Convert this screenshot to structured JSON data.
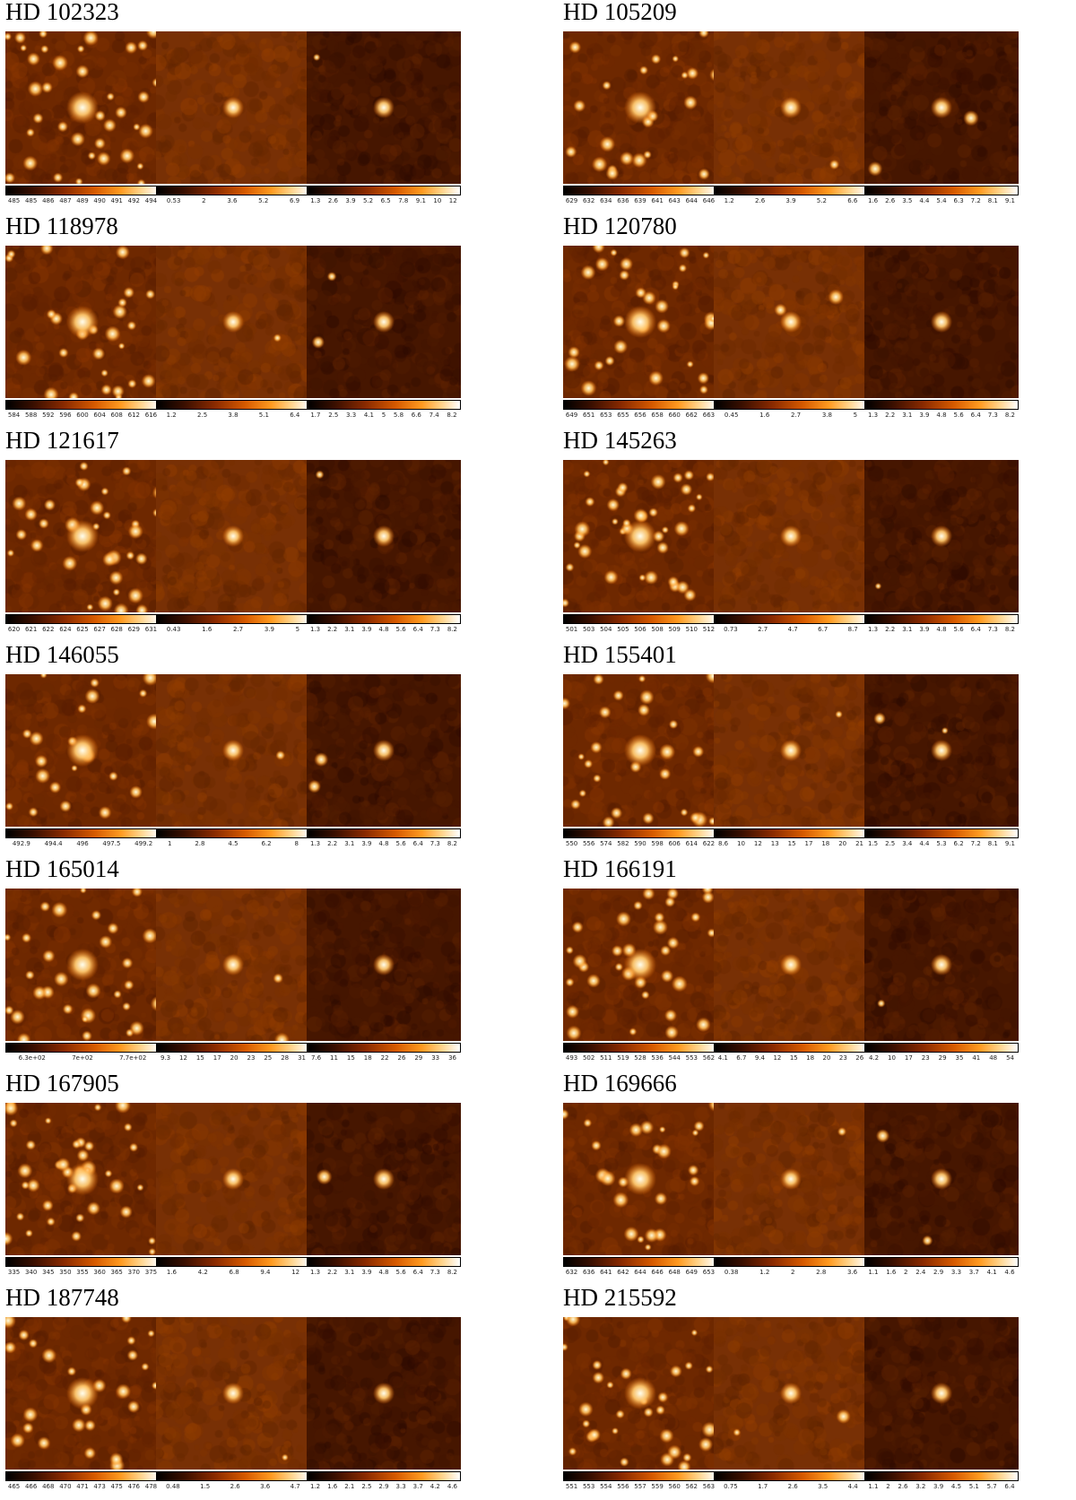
{
  "objects": [
    {
      "name": "HD 102323",
      "panels": [
        [
          "485",
          "485",
          "486",
          "487",
          "489",
          "490",
          "491",
          "492",
          "494"
        ],
        [
          "0.53",
          "2",
          "3.6",
          "5.2",
          "6.9"
        ],
        [
          "1.3",
          "2.6",
          "3.9",
          "5.2",
          "6.5",
          "7.8",
          "9.1",
          "10",
          "12"
        ]
      ]
    },
    {
      "name": "HD 105209",
      "panels": [
        [
          "629",
          "632",
          "634",
          "636",
          "639",
          "641",
          "643",
          "644",
          "646"
        ],
        [
          "1.2",
          "2.6",
          "3.9",
          "5.2",
          "6.6"
        ],
        [
          "1.6",
          "2.6",
          "3.5",
          "4.4",
          "5.4",
          "6.3",
          "7.2",
          "8.1",
          "9.1"
        ]
      ]
    },
    {
      "name": "HD 118978",
      "panels": [
        [
          "584",
          "588",
          "592",
          "596",
          "600",
          "604",
          "608",
          "612",
          "616"
        ],
        [
          "1.2",
          "2.5",
          "3.8",
          "5.1",
          "6.4"
        ],
        [
          "1.7",
          "2.5",
          "3.3",
          "4.1",
          "5",
          "5.8",
          "6.6",
          "7.4",
          "8.2"
        ]
      ]
    },
    {
      "name": "HD 120780",
      "panels": [
        [
          "649",
          "651",
          "653",
          "655",
          "656",
          "658",
          "660",
          "662",
          "663"
        ],
        [
          "0.45",
          "1.6",
          "2.7",
          "3.8",
          "5"
        ],
        [
          "1.3",
          "2.2",
          "3.1",
          "3.9",
          "4.8",
          "5.6",
          "6.4",
          "7.3",
          "8.2"
        ]
      ]
    },
    {
      "name": "HD 121617",
      "panels": [
        [
          "620",
          "621",
          "622",
          "624",
          "625",
          "627",
          "628",
          "629",
          "631"
        ],
        [
          "0.43",
          "1.6",
          "2.7",
          "3.9",
          "5"
        ],
        [
          "1.3",
          "2.2",
          "3.1",
          "3.9",
          "4.8",
          "5.6",
          "6.4",
          "7.3",
          "8.2"
        ]
      ]
    },
    {
      "name": "HD 145263",
      "panels": [
        [
          "501",
          "503",
          "504",
          "505",
          "506",
          "508",
          "509",
          "510",
          "512"
        ],
        [
          "0.73",
          "2.7",
          "4.7",
          "6.7",
          "8.7"
        ],
        [
          "1.3",
          "2.2",
          "3.1",
          "3.9",
          "4.8",
          "5.6",
          "6.4",
          "7.3",
          "8.2"
        ]
      ]
    },
    {
      "name": "HD 146055",
      "panels": [
        [
          "492.9",
          "494.4",
          "496",
          "497.5",
          "499.2"
        ],
        [
          "1",
          "2.8",
          "4.5",
          "6.2",
          "8"
        ],
        [
          "1.3",
          "2.2",
          "3.1",
          "3.9",
          "4.8",
          "5.6",
          "6.4",
          "7.3",
          "8.2"
        ]
      ]
    },
    {
      "name": "HD 155401",
      "panels": [
        [
          "550",
          "556",
          "574",
          "582",
          "590",
          "598",
          "606",
          "614",
          "622"
        ],
        [
          "8.6",
          "10",
          "12",
          "13",
          "15",
          "17",
          "18",
          "20",
          "21"
        ],
        [
          "1.5",
          "2.5",
          "3.4",
          "4.4",
          "5.3",
          "6.2",
          "7.2",
          "8.1",
          "9.1"
        ]
      ]
    },
    {
      "name": "HD 165014",
      "panels": [
        [
          "6.3e+02",
          "7e+02",
          "7.7e+02"
        ],
        [
          "9.3",
          "12",
          "15",
          "17",
          "20",
          "23",
          "25",
          "28",
          "31"
        ],
        [
          "7.6",
          "11",
          "15",
          "18",
          "22",
          "26",
          "29",
          "33",
          "36"
        ]
      ]
    },
    {
      "name": "HD 166191",
      "panels": [
        [
          "493",
          "502",
          "511",
          "519",
          "528",
          "536",
          "544",
          "553",
          "562"
        ],
        [
          "4.1",
          "6.7",
          "9.4",
          "12",
          "15",
          "18",
          "20",
          "23",
          "26"
        ],
        [
          "4.2",
          "10",
          "17",
          "23",
          "29",
          "35",
          "41",
          "48",
          "54"
        ]
      ]
    },
    {
      "name": "HD 167905",
      "panels": [
        [
          "335",
          "340",
          "345",
          "350",
          "355",
          "360",
          "365",
          "370",
          "375"
        ],
        [
          "1.6",
          "4.2",
          "6.8",
          "9.4",
          "12"
        ],
        [
          "1.3",
          "2.2",
          "3.1",
          "3.9",
          "4.8",
          "5.6",
          "6.4",
          "7.3",
          "8.2"
        ]
      ]
    },
    {
      "name": "HD 169666",
      "panels": [
        [
          "632",
          "636",
          "641",
          "642",
          "644",
          "646",
          "648",
          "649",
          "653"
        ],
        [
          "0.38",
          "1.2",
          "2",
          "2.8",
          "3.6"
        ],
        [
          "1.1",
          "1.6",
          "2",
          "2.4",
          "2.9",
          "3.3",
          "3.7",
          "4.1",
          "4.6"
        ]
      ]
    },
    {
      "name": "HD 187748",
      "panels": [
        [
          "465",
          "466",
          "468",
          "470",
          "471",
          "473",
          "475",
          "476",
          "478"
        ],
        [
          "0.48",
          "1.5",
          "2.6",
          "3.6",
          "4.7"
        ],
        [
          "1.2",
          "1.6",
          "2.1",
          "2.5",
          "2.9",
          "3.3",
          "3.7",
          "4.2",
          "4.6"
        ]
      ]
    },
    {
      "name": "HD 215592",
      "panels": [
        [
          "551",
          "553",
          "554",
          "556",
          "557",
          "559",
          "560",
          "562",
          "563"
        ],
        [
          "0.75",
          "1.7",
          "2.6",
          "3.5",
          "4.4"
        ],
        [
          "1.1",
          "2",
          "2.6",
          "3.2",
          "3.9",
          "4.5",
          "5.1",
          "5.7",
          "6.4"
        ]
      ]
    }
  ]
}
